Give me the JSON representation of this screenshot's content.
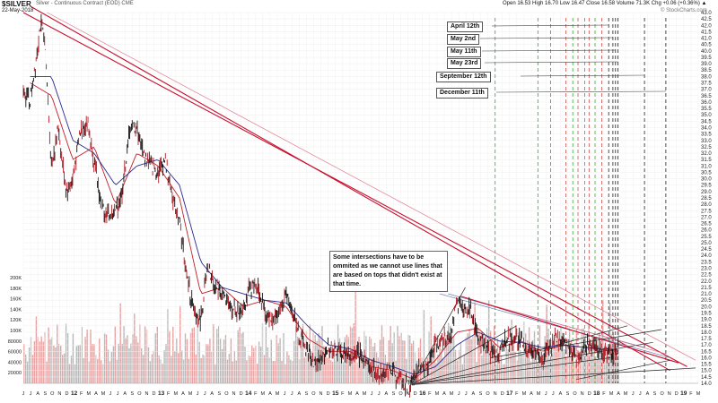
{
  "header": {
    "symbol": "$SILVER",
    "description": "Silver - Continuous Contract (EOD) CME",
    "date": "22-May-2018",
    "quote": "Open 16.53  High 16.70  Low 16.47  Close 16.58  Volume 71.3K  Chg +0.06 (+0.36%) ▲",
    "copyright": "© StockCharts.com"
  },
  "callouts": [
    "April 12th",
    "May 2nd",
    "May 11th",
    "May 23rd",
    "September 12th",
    "December 11th"
  ],
  "note": "Some intersections have to be ommited as we cannot use lines that are based on tops that didn't exist at that time.",
  "colors": {
    "price": "#111111",
    "ma_short": "#c0202a",
    "ma_long": "#2a2a8f",
    "trend_red": "#c8102e",
    "trend_pink": "#e0788a",
    "trend_blue": "#6a7fb0",
    "vline_green": "#3aa83a",
    "vline_red": "#d44a4a",
    "vline_black": "#222222",
    "volume_up": "#b8b8b8",
    "volume_down": "#e8a0a0"
  },
  "chart_data": {
    "type": "line",
    "title": "$SILVER",
    "y_axis_right": {
      "min": 14.0,
      "max": 43.0,
      "ticks": [
        "43.0",
        "42.5",
        "42.0",
        "41.5",
        "41.0",
        "40.5",
        "40.0",
        "39.5",
        "39.0",
        "38.5",
        "38.0",
        "37.5",
        "37.0",
        "36.5",
        "36.0",
        "35.5",
        "35.0",
        "34.5",
        "34.0",
        "33.5",
        "33.0",
        "32.5",
        "32.0",
        "31.5",
        "31.0",
        "30.5",
        "30.0",
        "29.5",
        "29.0",
        "28.5",
        "28.0",
        "27.5",
        "27.0",
        "26.5",
        "26.0",
        "25.5",
        "25.0",
        "24.5",
        "24.0",
        "23.5",
        "23.0",
        "22.5",
        "22.0",
        "21.5",
        "21.0",
        "20.5",
        "20.0",
        "19.5",
        "19.0",
        "18.5",
        "18.0",
        "17.5",
        "17.0",
        "16.5",
        "16.0",
        "15.5",
        "15.0",
        "14.5",
        "14.0"
      ]
    },
    "volume_axis": {
      "ticks": [
        "200K",
        "180K",
        "160K",
        "140K",
        "120K",
        "100K",
        "80000",
        "60000",
        "40000",
        "20000"
      ],
      "max": 200000
    },
    "x_ticks": [
      "J",
      "J",
      "A",
      "S",
      "O",
      "N",
      "D",
      "12",
      "F",
      "M",
      "A",
      "M",
      "J",
      "J",
      "A",
      "S",
      "O",
      "N",
      "D",
      "13",
      "F",
      "M",
      "A",
      "M",
      "J",
      "J",
      "A",
      "S",
      "O",
      "N",
      "D",
      "14",
      "F",
      "M",
      "A",
      "M",
      "J",
      "J",
      "A",
      "S",
      "O",
      "N",
      "D",
      "15",
      "F",
      "M",
      "A",
      "M",
      "J",
      "J",
      "A",
      "S",
      "O",
      "N",
      "D",
      "16",
      "F",
      "M",
      "A",
      "M",
      "J",
      "J",
      "A",
      "S",
      "O",
      "N",
      "D",
      "17",
      "F",
      "M",
      "A",
      "M",
      "J",
      "J",
      "A",
      "S",
      "O",
      "N",
      "D",
      "18",
      "F",
      "M",
      "A",
      "M",
      "J",
      "J",
      "A",
      "S",
      "O",
      "N",
      "D",
      "19",
      "F",
      "M"
    ],
    "x_range": [
      2011.42,
      2019.33
    ],
    "series": [
      {
        "x": [
          2011.42,
          2011.5,
          2011.58,
          2011.62,
          2011.67,
          2011.75,
          2011.83,
          2011.92,
          2012.0,
          2012.08,
          2012.17,
          2012.25,
          2012.33,
          2012.42,
          2012.5,
          2012.58,
          2012.67,
          2012.75,
          2012.83,
          2012.92,
          2013.0,
          2013.08,
          2013.17,
          2013.25,
          2013.33,
          2013.42,
          2013.5,
          2013.58,
          2013.67,
          2013.75,
          2013.83,
          2013.92,
          2014.0,
          2014.08,
          2014.17,
          2014.25,
          2014.33,
          2014.42,
          2014.5,
          2014.58,
          2014.67,
          2014.75,
          2014.83,
          2014.92,
          2015.0,
          2015.08,
          2015.17,
          2015.25,
          2015.33,
          2015.42,
          2015.5,
          2015.58,
          2015.67,
          2015.75,
          2015.83,
          2015.92,
          2016.0,
          2016.08,
          2016.17,
          2016.25,
          2016.33,
          2016.42,
          2016.5,
          2016.58,
          2016.67,
          2016.75,
          2016.83,
          2016.92,
          2017.0,
          2017.08,
          2017.17,
          2017.25,
          2017.33,
          2017.42,
          2017.5,
          2017.58,
          2017.67,
          2017.75,
          2017.83,
          2017.92,
          2018.0,
          2018.08,
          2018.17,
          2018.25,
          2018.33,
          2018.39
        ],
        "y": [
          37.0,
          36.0,
          40.0,
          42.0,
          41.0,
          31.0,
          34.0,
          29.0,
          30.0,
          33.5,
          34.5,
          31.5,
          28.0,
          27.0,
          27.5,
          29.0,
          34.0,
          34.0,
          32.0,
          31.0,
          30.5,
          31.5,
          28.5,
          27.0,
          22.5,
          19.5,
          19.0,
          23.0,
          21.5,
          21.0,
          20.0,
          19.5,
          20.0,
          21.5,
          21.5,
          19.5,
          19.0,
          19.5,
          21.0,
          19.5,
          17.5,
          16.5,
          15.5,
          15.8,
          17.0,
          16.5,
          16.3,
          16.0,
          16.3,
          16.0,
          15.0,
          14.8,
          15.0,
          15.0,
          14.2,
          13.8,
          14.2,
          15.3,
          15.5,
          17.0,
          17.3,
          17.5,
          20.0,
          20.0,
          19.5,
          17.5,
          17.0,
          16.2,
          16.5,
          17.5,
          17.5,
          17.5,
          16.3,
          16.8,
          15.5,
          16.8,
          17.5,
          17.0,
          16.8,
          16.0,
          17.0,
          17.0,
          16.5,
          16.5,
          16.4,
          16.58
        ],
        "color_key": "price"
      },
      {
        "x": [
          2011.5,
          2011.75,
          2012.0,
          2012.25,
          2012.5,
          2012.75,
          2013.0,
          2013.25,
          2013.5,
          2013.75,
          2014.0,
          2014.25,
          2014.5,
          2014.75,
          2015.0,
          2015.25,
          2015.5,
          2015.75,
          2016.0,
          2016.25,
          2016.5,
          2016.75,
          2017.0,
          2017.25,
          2017.5,
          2017.75,
          2018.0,
          2018.25,
          2018.39
        ],
        "y": [
          37.5,
          36.5,
          31.5,
          32.5,
          28.0,
          32.0,
          31.0,
          28.5,
          21.0,
          21.5,
          20.0,
          20.5,
          20.0,
          17.5,
          16.5,
          16.5,
          15.3,
          15.0,
          14.3,
          15.8,
          18.0,
          18.3,
          16.8,
          17.3,
          16.5,
          17.0,
          16.8,
          16.6,
          16.5
        ],
        "color_key": "ma_short"
      },
      {
        "x": [
          2011.5,
          2011.75,
          2012.0,
          2012.25,
          2012.5,
          2012.75,
          2013.0,
          2013.25,
          2013.5,
          2013.75,
          2014.0,
          2014.25,
          2014.5,
          2014.75,
          2015.0,
          2015.25,
          2015.5,
          2015.75,
          2016.0,
          2016.25,
          2016.5,
          2016.75,
          2017.0,
          2017.25,
          2017.5,
          2017.75,
          2018.0,
          2018.25,
          2018.39
        ],
        "y": [
          38.0,
          38.0,
          33.0,
          32.0,
          29.5,
          31.0,
          31.5,
          29.5,
          23.5,
          21.5,
          21.0,
          20.5,
          20.3,
          18.5,
          17.0,
          16.7,
          15.8,
          15.3,
          14.7,
          15.3,
          17.0,
          18.0,
          17.3,
          17.2,
          16.8,
          17.0,
          16.8,
          16.7,
          16.6
        ],
        "color_key": "ma_long"
      }
    ],
    "trend_lines": [
      {
        "from": [
          2011.5,
          43.5
        ],
        "to": [
          2019.0,
          15.0
        ],
        "color_key": "trend_red"
      },
      {
        "from": [
          2011.42,
          43.0
        ],
        "to": [
          2019.2,
          15.3
        ],
        "color_key": "trend_red"
      },
      {
        "from": [
          2011.7,
          43.0
        ],
        "to": [
          2019.3,
          15.8
        ],
        "color_key": "trend_pink"
      },
      {
        "from": [
          2016.3,
          21.0
        ],
        "to": [
          2019.0,
          16.0
        ],
        "color_key": "trend_blue"
      },
      {
        "from": [
          2016.4,
          21.0
        ],
        "to": [
          2018.7,
          16.8
        ],
        "color_key": "trend_blue"
      },
      {
        "from": [
          2015.97,
          13.9
        ],
        "to": [
          2019.3,
          15.2
        ],
        "color_key": "vline_black"
      },
      {
        "from": [
          2015.97,
          13.9
        ],
        "to": [
          2018.8,
          17.2
        ],
        "color_key": "vline_black"
      },
      {
        "from": [
          2015.97,
          13.9
        ],
        "to": [
          2017.2,
          18.5
        ],
        "color_key": "vline_black"
      },
      {
        "from": [
          2015.97,
          13.9
        ],
        "to": [
          2018.5,
          18.5
        ],
        "color_key": "vline_black"
      },
      {
        "from": [
          2015.97,
          13.9
        ],
        "to": [
          2018.3,
          16.0
        ],
        "color_key": "vline_black"
      },
      {
        "from": [
          2015.97,
          13.9
        ],
        "to": [
          2016.6,
          21.5
        ],
        "color_key": "vline_black"
      },
      {
        "from": [
          2016.9,
          16.0
        ],
        "to": [
          2018.9,
          18.2
        ],
        "color_key": "vline_black"
      },
      {
        "from": [
          2017.9,
          14.3
        ],
        "to": [
          2019.0,
          15.8
        ],
        "color_key": "vline_black"
      },
      {
        "from": [
          2016.7,
          20.5
        ],
        "to": [
          2018.95,
          16.3
        ],
        "color_key": "trend_pink"
      },
      {
        "from": [
          2016.55,
          20.8
        ],
        "to": [
          2019.1,
          15.6
        ],
        "color_key": "trend_red"
      }
    ],
    "vertical_lines": [
      {
        "x": 2016.95,
        "color_key": "vline_green"
      },
      {
        "x": 2017.45,
        "color_key": "vline_green"
      },
      {
        "x": 2017.6,
        "color_key": "vline_red"
      },
      {
        "x": 2017.78,
        "color_key": "vline_red"
      },
      {
        "x": 2017.86,
        "color_key": "vline_green"
      },
      {
        "x": 2017.92,
        "color_key": "vline_red"
      },
      {
        "x": 2018.0,
        "color_key": "vline_green"
      },
      {
        "x": 2018.05,
        "color_key": "vline_red"
      },
      {
        "x": 2018.12,
        "color_key": "vline_green"
      },
      {
        "x": 2018.2,
        "color_key": "vline_red"
      },
      {
        "x": 2018.28,
        "color_key": "vline_black"
      },
      {
        "x": 2018.33,
        "color_key": "vline_black"
      },
      {
        "x": 2018.36,
        "color_key": "vline_black"
      },
      {
        "x": 2018.39,
        "color_key": "vline_black"
      },
      {
        "x": 2018.7,
        "color_key": "vline_black"
      },
      {
        "x": 2018.95,
        "color_key": "vline_black"
      }
    ]
  }
}
